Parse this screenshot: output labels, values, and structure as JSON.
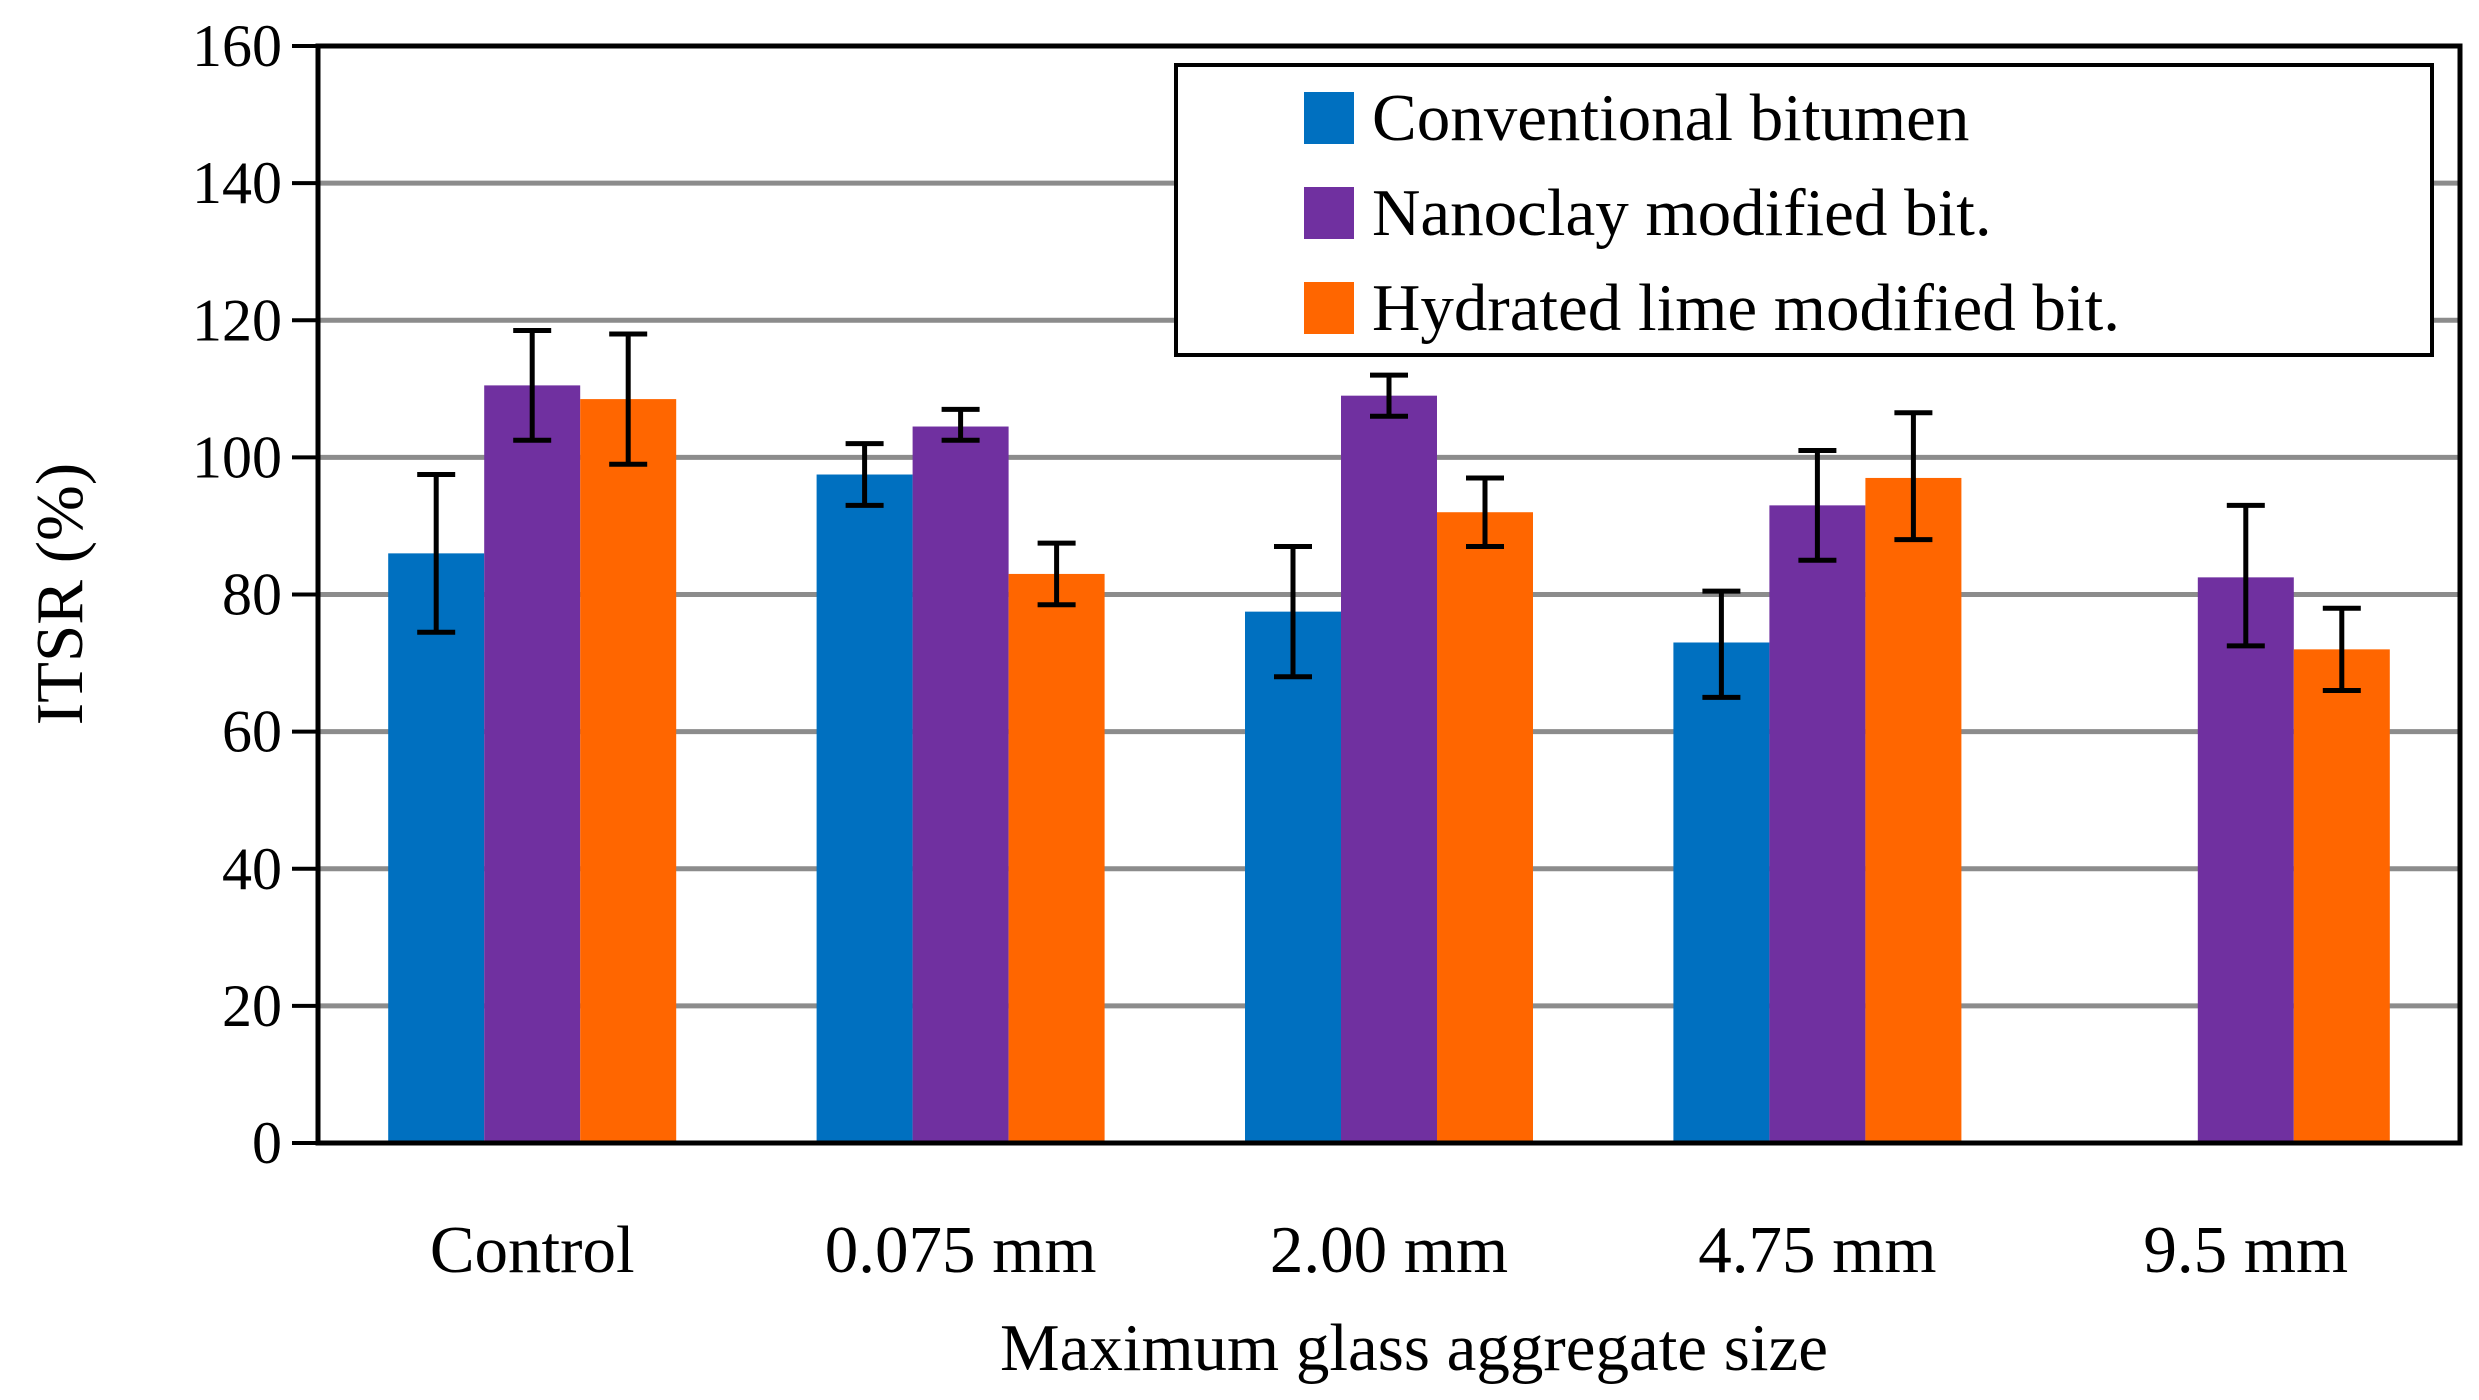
{
  "chart_data": {
    "type": "bar",
    "title": "",
    "xlabel": "Maximum glass aggregate size",
    "ylabel": "ITSR (%)",
    "ylim": [
      0,
      160
    ],
    "yticks": [
      "0",
      "20",
      "40",
      "60",
      "80",
      "100",
      "120",
      "140",
      "160"
    ],
    "grid": true,
    "legend_position": "top-right",
    "categories": [
      "Control",
      "0.075 mm",
      "2.00 mm",
      "4.75 mm",
      "9.5 mm"
    ],
    "series": [
      {
        "name": "Conventional bitumen",
        "color": "#0070C0",
        "values": [
          86,
          97.5,
          77.5,
          73,
          null
        ],
        "error_low": [
          74.5,
          93,
          68,
          65,
          null
        ],
        "error_high": [
          97.5,
          102,
          87,
          80.5,
          null
        ]
      },
      {
        "name": "Nanoclay modified bit.",
        "color": "#7030A0",
        "values": [
          110.5,
          104.5,
          109,
          93,
          82.5
        ],
        "error_low": [
          102.5,
          102.5,
          106,
          85,
          72.5
        ],
        "error_high": [
          118.5,
          107,
          112,
          101,
          93
        ]
      },
      {
        "name": "Hydrated lime modified bit.",
        "color": "#FF6600",
        "values": [
          108.5,
          83,
          92,
          97,
          72
        ],
        "error_low": [
          99,
          78.5,
          87,
          88,
          66
        ],
        "error_high": [
          118,
          87.5,
          97,
          106.5,
          78
        ]
      }
    ]
  }
}
